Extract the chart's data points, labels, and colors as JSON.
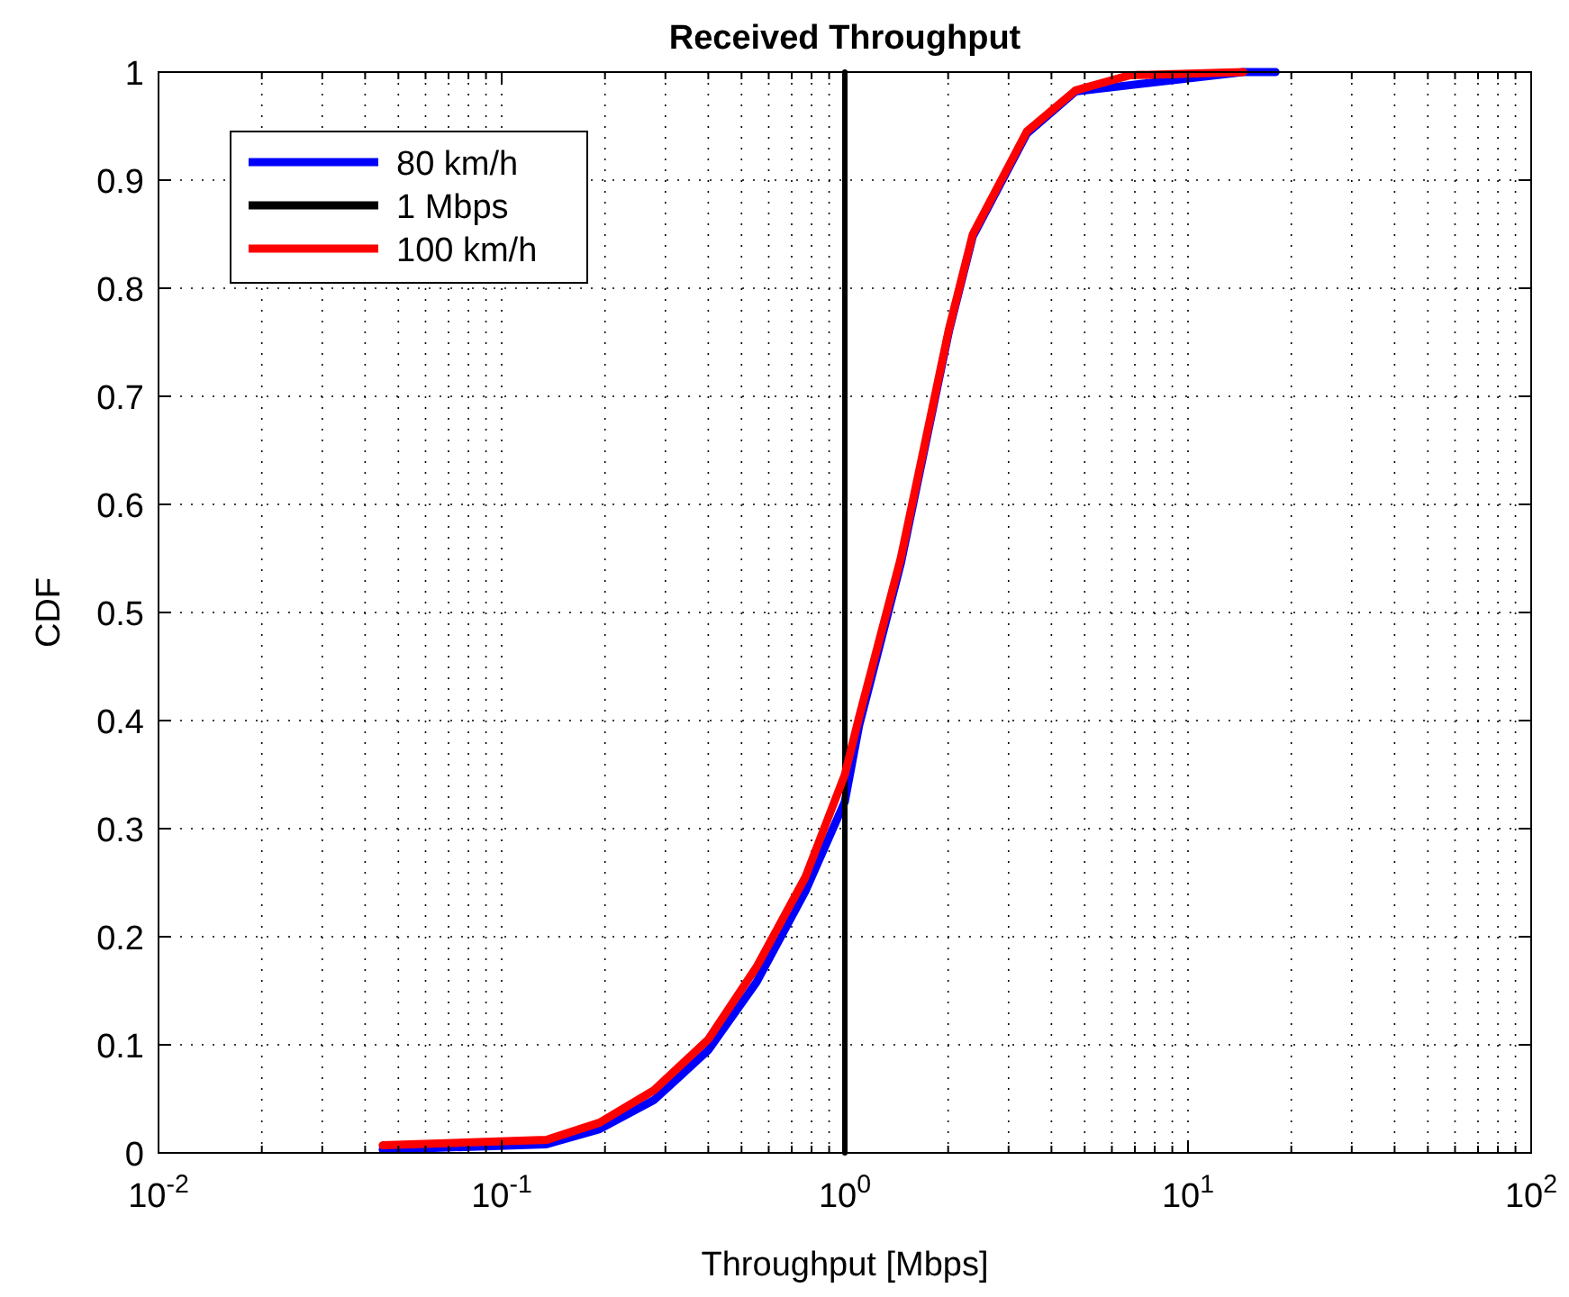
{
  "chart_data": {
    "type": "line",
    "title": "Received Throughput",
    "xlabel": "Throughput [Mbps]",
    "ylabel": "CDF",
    "log": "x",
    "grid": true,
    "legend": "top left",
    "line_style": "solid",
    "marker": "none",
    "xlim": [
      0.01,
      100
    ],
    "xticks": [
      {
        "value": 0.01,
        "label": "10$^{-2}$"
      },
      {
        "value": 0.1,
        "label": "10$^{-1}$"
      },
      {
        "value": 1,
        "label": "10$^{0}$"
      },
      {
        "value": 10,
        "label": "10$^{1}$"
      },
      {
        "value": 100,
        "label": "10$^{2}$"
      }
    ],
    "ylim": [
      0,
      1
    ],
    "yticks": [
      0,
      0.1,
      0.2,
      0.3,
      0.4,
      0.5,
      0.6,
      0.7,
      0.8,
      0.9,
      1
    ],
    "series": [
      {
        "name": "80 km/h",
        "color": "#0000ff",
        "x": [
          0.045,
          0.135,
          0.193,
          0.278,
          0.4,
          0.553,
          0.767,
          1.0,
          1.1,
          1.455,
          2.01,
          2.36,
          3.39,
          4.7,
          6.75,
          14.5,
          18.0
        ],
        "values": [
          0.003,
          0.008,
          0.022,
          0.049,
          0.095,
          0.158,
          0.242,
          0.325,
          0.395,
          0.545,
          0.76,
          0.848,
          0.943,
          0.982,
          null,
          1.0,
          1.0
        ]
      },
      {
        "name": "1 Mbps",
        "color": "#000000",
        "x": [
          1,
          1
        ],
        "values": [
          0,
          1
        ]
      },
      {
        "name": "100 km/h",
        "color": "#ff0000",
        "x": [
          0.045,
          0.135,
          0.193,
          0.278,
          0.4,
          0.553,
          0.767,
          1.0,
          1.1,
          1.455,
          2.01,
          2.36,
          3.39,
          4.7,
          6.75,
          14.5
        ],
        "values": [
          0.007,
          0.012,
          0.028,
          0.058,
          0.105,
          0.172,
          0.255,
          0.35,
          0.403,
          0.55,
          0.762,
          0.85,
          0.945,
          0.983,
          0.997,
          1.0
        ]
      }
    ]
  }
}
